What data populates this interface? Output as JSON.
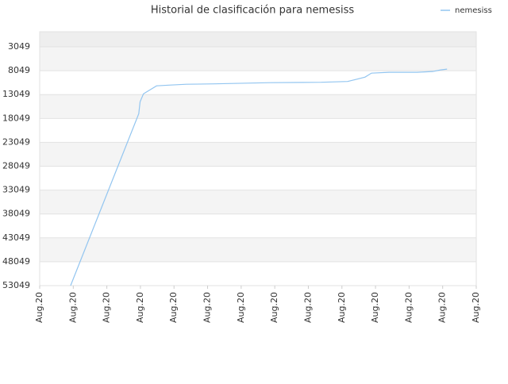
{
  "chart_data": {
    "type": "line",
    "title": "Historial de clasificación para nemesiss",
    "legend": "top-right",
    "grid": true,
    "y_inverted": true,
    "xlim": [
      0,
      13
    ],
    "xticks": [
      {
        "value": 0,
        "label": "Aug.20"
      },
      {
        "value": 1,
        "label": "Aug.20"
      },
      {
        "value": 2,
        "label": "Aug.20"
      },
      {
        "value": 3,
        "label": "Aug.20"
      },
      {
        "value": 4,
        "label": "Aug.20"
      },
      {
        "value": 5,
        "label": "Aug.20"
      },
      {
        "value": 6,
        "label": "Aug.20"
      },
      {
        "value": 7,
        "label": "Aug.20"
      },
      {
        "value": 8,
        "label": "Aug.20"
      },
      {
        "value": 9,
        "label": "Aug.20"
      },
      {
        "value": 10,
        "label": "Aug.20"
      },
      {
        "value": 11,
        "label": "Aug.20"
      },
      {
        "value": 12,
        "label": "Aug.20"
      },
      {
        "value": 13,
        "label": "Aug.20"
      }
    ],
    "ylim": [
      53049,
      -118
    ],
    "yticks": [
      3049,
      8049,
      13049,
      18049,
      23049,
      28049,
      33049,
      38049,
      43049,
      48049,
      53049
    ],
    "x": [
      0.92,
      2.95,
      2.99,
      3.09,
      3.48,
      3.9,
      4.37,
      5.2,
      6.86,
      8.39,
      9.17,
      9.41,
      9.69,
      9.88,
      10.4,
      11.23,
      11.7,
      11.94,
      12.13
    ],
    "series": [
      {
        "name": "nemesiss",
        "color": "#92c5f0",
        "values": [
          53049,
          17049,
          14549,
          12882,
          11215,
          11049,
          10882,
          10799,
          10549,
          10466,
          10299,
          9882,
          9382,
          8549,
          8382,
          8382,
          8215,
          7882,
          7716
        ]
      }
    ]
  }
}
